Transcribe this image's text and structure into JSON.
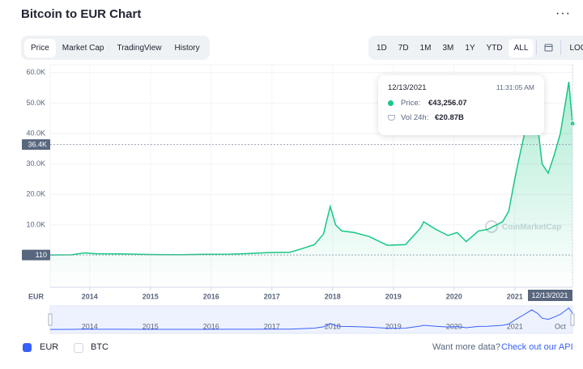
{
  "header": {
    "title": "Bitcoin to EUR Chart"
  },
  "tabs": [
    "Price",
    "Market Cap",
    "TradingView",
    "History"
  ],
  "ranges": [
    "1D",
    "7D",
    "1M",
    "3M",
    "1Y",
    "YTD",
    "ALL",
    "LOG"
  ],
  "tooltip": {
    "date": "12/13/2021",
    "time": "11:31:05 AM",
    "price_label": "Price:",
    "price": "€43,256.07",
    "volume_label": "Vol 24h:",
    "volume": "€20.87B"
  },
  "toggles": {
    "other": "BTC"
  },
  "footer": {
    "text": "Want more data?",
    "link": "Check out our API"
  },
  "watermark": "CoinMarketCap",
  "chart_data": {
    "type": "line",
    "y_unit": "EUR",
    "x": [
      2013.35,
      2013.7,
      2013.92,
      2014.1,
      2014.5,
      2014.9,
      2015.1,
      2015.5,
      2015.9,
      2016.3,
      2016.6,
      2016.95,
      2017.3,
      2017.5,
      2017.7,
      2017.85,
      2017.96,
      2018.05,
      2018.15,
      2018.35,
      2018.6,
      2018.9,
      2019.2,
      2019.45,
      2019.5,
      2019.7,
      2019.9,
      2020.05,
      2020.2,
      2020.4,
      2020.55,
      2020.8,
      2020.9,
      2020.99,
      2021.05,
      2021.15,
      2021.28,
      2021.38,
      2021.45,
      2021.55,
      2021.65,
      2021.75,
      2021.85,
      2021.89,
      2021.95
    ],
    "series": [
      {
        "name": "EUR",
        "color": "#16c784",
        "values": [
          100,
          150,
          800,
          500,
          450,
          300,
          250,
          220,
          330,
          380,
          560,
          900,
          1000,
          2200,
          3500,
          7000,
          16000,
          10000,
          8000,
          7500,
          6200,
          3300,
          3500,
          9000,
          11000,
          8500,
          6500,
          7500,
          4500,
          8000,
          8500,
          11000,
          14500,
          24000,
          30000,
          39000,
          52000,
          42000,
          30000,
          27000,
          33000,
          40000,
          52000,
          57000,
          43256
        ]
      }
    ],
    "xlim": [
      2013.35,
      2021.95
    ],
    "xticks": [
      2014,
      2015,
      2016,
      2017,
      2018,
      2019,
      2020,
      2021
    ],
    "ylim": [
      -10500,
      62600
    ],
    "yticks": [
      {
        "value": 10000,
        "label": "10.0K"
      },
      {
        "value": 20000,
        "label": "20.0K"
      },
      {
        "value": 30000,
        "label": "30.0K"
      },
      {
        "value": 40000,
        "label": "40.0K"
      },
      {
        "value": 50000,
        "label": "50.0K"
      },
      {
        "value": 60000,
        "label": "60.0K"
      }
    ],
    "markers": [
      {
        "value": 36400,
        "label": "36.4K"
      },
      {
        "value": 110,
        "label": "110"
      }
    ],
    "hover_x_label": "12/13/2021",
    "navigator_ticks": [
      2014,
      2015,
      2016,
      2017,
      2018,
      2019,
      2020,
      2021,
      {
        "value": 2021.75,
        "label": "Oct"
      }
    ],
    "grid": true
  }
}
